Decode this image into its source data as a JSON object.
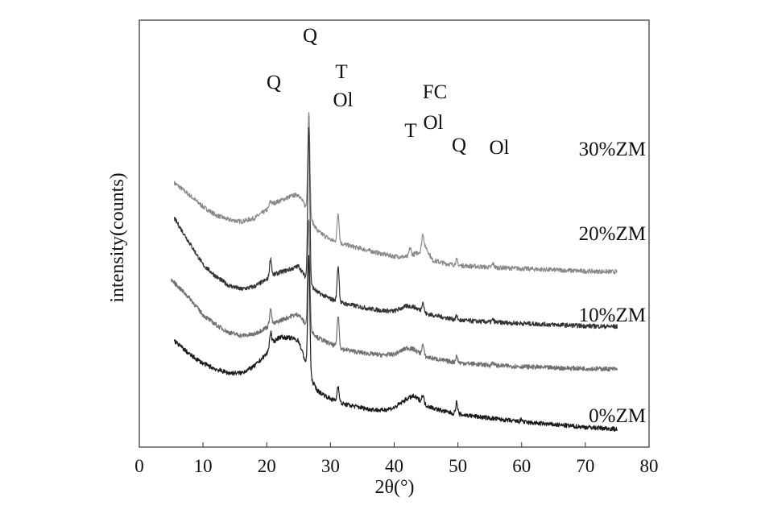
{
  "chart_data": {
    "type": "line",
    "xlabel": "2θ(°)",
    "ylabel": "intensity(counts)",
    "xlim": [
      0,
      80
    ],
    "xticks": [
      0,
      10,
      20,
      30,
      40,
      50,
      60,
      70,
      80
    ],
    "yticks_shown": false,
    "grid": false,
    "legend": "labels beside curves (right)",
    "series": [
      {
        "name": "30%ZM",
        "color": "#8a8a8a",
        "offset": 245,
        "points": [
          [
            5.5,
            140
          ],
          [
            8,
            120
          ],
          [
            10,
            103
          ],
          [
            12,
            90
          ],
          [
            14,
            83
          ],
          [
            16,
            80
          ],
          [
            18,
            85
          ],
          [
            20,
            98
          ],
          [
            21,
            108
          ],
          [
            22,
            112
          ],
          [
            24,
            120
          ],
          [
            25,
            122
          ],
          [
            26,
            105
          ],
          [
            27,
            82
          ],
          [
            28,
            65
          ],
          [
            30,
            52
          ],
          [
            32,
            45
          ],
          [
            34,
            40
          ],
          [
            36,
            35
          ],
          [
            38,
            30
          ],
          [
            40,
            26
          ],
          [
            42,
            25
          ],
          [
            44,
            33
          ],
          [
            45,
            40
          ],
          [
            46,
            20
          ],
          [
            48,
            15
          ],
          [
            50,
            12
          ],
          [
            55,
            9
          ],
          [
            60,
            7
          ],
          [
            65,
            5
          ],
          [
            70,
            3
          ],
          [
            75,
            2
          ]
        ],
        "peaks": [
          [
            20.6,
            8
          ],
          [
            26.6,
            160
          ],
          [
            31.2,
            45
          ],
          [
            42.5,
            12
          ],
          [
            44.5,
            25
          ],
          [
            49.8,
            8
          ],
          [
            55.5,
            6
          ]
        ]
      },
      {
        "name": "20%ZM",
        "color": "#333333",
        "offset": 160,
        "points": [
          [
            5.5,
            170
          ],
          [
            8,
            130
          ],
          [
            10,
            98
          ],
          [
            12,
            80
          ],
          [
            14,
            66
          ],
          [
            16,
            60
          ],
          [
            18,
            64
          ],
          [
            20,
            75
          ],
          [
            21,
            82
          ],
          [
            22,
            86
          ],
          [
            24,
            92
          ],
          [
            25,
            96
          ],
          [
            26,
            80
          ],
          [
            27,
            65
          ],
          [
            28,
            55
          ],
          [
            30,
            45
          ],
          [
            32,
            38
          ],
          [
            34,
            34
          ],
          [
            36,
            30
          ],
          [
            38,
            27
          ],
          [
            40,
            26
          ],
          [
            42,
            34
          ],
          [
            43,
            33
          ],
          [
            44,
            28
          ],
          [
            45,
            22
          ],
          [
            46,
            20
          ],
          [
            48,
            16
          ],
          [
            50,
            12
          ],
          [
            55,
            9
          ],
          [
            60,
            7
          ],
          [
            65,
            5
          ],
          [
            70,
            3
          ],
          [
            75,
            2
          ]
        ],
        "peaks": [
          [
            20.6,
            28
          ],
          [
            26.6,
            240
          ],
          [
            31.2,
            55
          ],
          [
            44.5,
            15
          ],
          [
            49.8,
            6
          ],
          [
            55.5,
            4
          ]
        ]
      },
      {
        "name": "10%ZM",
        "color": "#707070",
        "offset": 95,
        "points": [
          [
            5,
            140
          ],
          [
            8,
            110
          ],
          [
            10,
            85
          ],
          [
            12,
            70
          ],
          [
            14,
            58
          ],
          [
            16,
            53
          ],
          [
            18,
            55
          ],
          [
            20,
            66
          ],
          [
            22,
            76
          ],
          [
            24,
            84
          ],
          [
            25,
            86
          ],
          [
            26,
            72
          ],
          [
            27,
            60
          ],
          [
            28,
            50
          ],
          [
            30,
            40
          ],
          [
            32,
            32
          ],
          [
            34,
            28
          ],
          [
            36,
            25
          ],
          [
            38,
            23
          ],
          [
            40,
            24
          ],
          [
            42,
            34
          ],
          [
            43,
            32
          ],
          [
            44,
            26
          ],
          [
            45,
            20
          ],
          [
            46,
            18
          ],
          [
            48,
            14
          ],
          [
            50,
            11
          ],
          [
            55,
            7
          ],
          [
            60,
            5
          ],
          [
            65,
            3
          ],
          [
            70,
            2
          ],
          [
            75,
            1
          ]
        ],
        "peaks": [
          [
            20.6,
            25
          ],
          [
            26.6,
            170
          ],
          [
            31.2,
            48
          ],
          [
            44.5,
            16
          ],
          [
            49.8,
            10
          ],
          [
            55.5,
            5
          ]
        ]
      },
      {
        "name": "0%ZM",
        "color": "#1a1a1a",
        "offset": 0,
        "points": [
          [
            5.5,
            140
          ],
          [
            8,
            118
          ],
          [
            10,
            105
          ],
          [
            12,
            96
          ],
          [
            14,
            90
          ],
          [
            16,
            90
          ],
          [
            18,
            100
          ],
          [
            20,
            120
          ],
          [
            21,
            138
          ],
          [
            22,
            146
          ],
          [
            24,
            144
          ],
          [
            25,
            140
          ],
          [
            26,
            110
          ],
          [
            27,
            80
          ],
          [
            28,
            62
          ],
          [
            30,
            50
          ],
          [
            32,
            42
          ],
          [
            34,
            38
          ],
          [
            36,
            34
          ],
          [
            38,
            32
          ],
          [
            40,
            36
          ],
          [
            42,
            50
          ],
          [
            43,
            54
          ],
          [
            44,
            48
          ],
          [
            45,
            40
          ],
          [
            46,
            36
          ],
          [
            48,
            30
          ],
          [
            50,
            26
          ],
          [
            55,
            20
          ],
          [
            60,
            14
          ],
          [
            65,
            10
          ],
          [
            70,
            6
          ],
          [
            75,
            3
          ]
        ],
        "peaks": [
          [
            20.6,
            22
          ],
          [
            26.6,
            180
          ],
          [
            31.2,
            25
          ],
          [
            44.5,
            12
          ],
          [
            49.8,
            18
          ],
          [
            60,
            4
          ]
        ]
      }
    ],
    "peak_annotations": [
      "Q",
      "Q",
      "T",
      "Ol",
      "FC",
      "Ol",
      "T",
      "Q",
      "Ol"
    ]
  }
}
